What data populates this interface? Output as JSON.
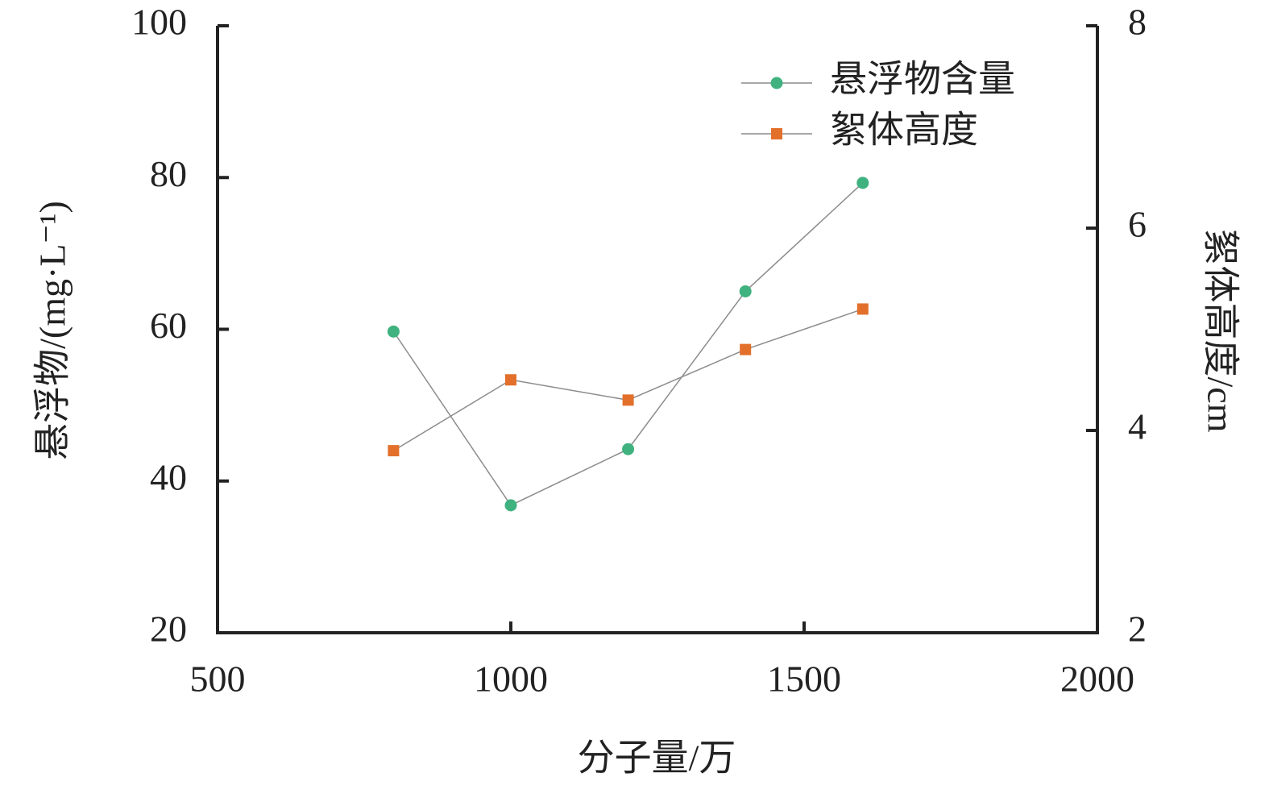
{
  "chart_data": {
    "type": "line",
    "x_label": "分子量/万",
    "y_label": "悬浮物/(mg·L⁻¹)",
    "y2_label": "絮体高度/cm",
    "x": [
      800,
      1000,
      1200,
      1400,
      1600
    ],
    "series": [
      {
        "name": "悬浮物含量",
        "color": "#3fb27f",
        "marker": "circle",
        "values": [
          59.7,
          36.8,
          44.2,
          65.0,
          79.3
        ]
      },
      {
        "name": "絮体高度",
        "color": "#e2702b",
        "marker": "square",
        "axis": "y2",
        "values": [
          3.8,
          4.5,
          4.3,
          4.8,
          5.2
        ]
      }
    ],
    "xlim": [
      500,
      2000
    ],
    "xticks": [
      500,
      1000,
      1500,
      2000
    ],
    "ylim": [
      20,
      100
    ],
    "yticks": [
      20,
      40,
      60,
      80,
      100
    ],
    "y2lim": [
      2,
      8
    ],
    "y2ticks": [
      2,
      4,
      6,
      8
    ],
    "line_color": "#8c8c8c",
    "legend": "upper right"
  }
}
